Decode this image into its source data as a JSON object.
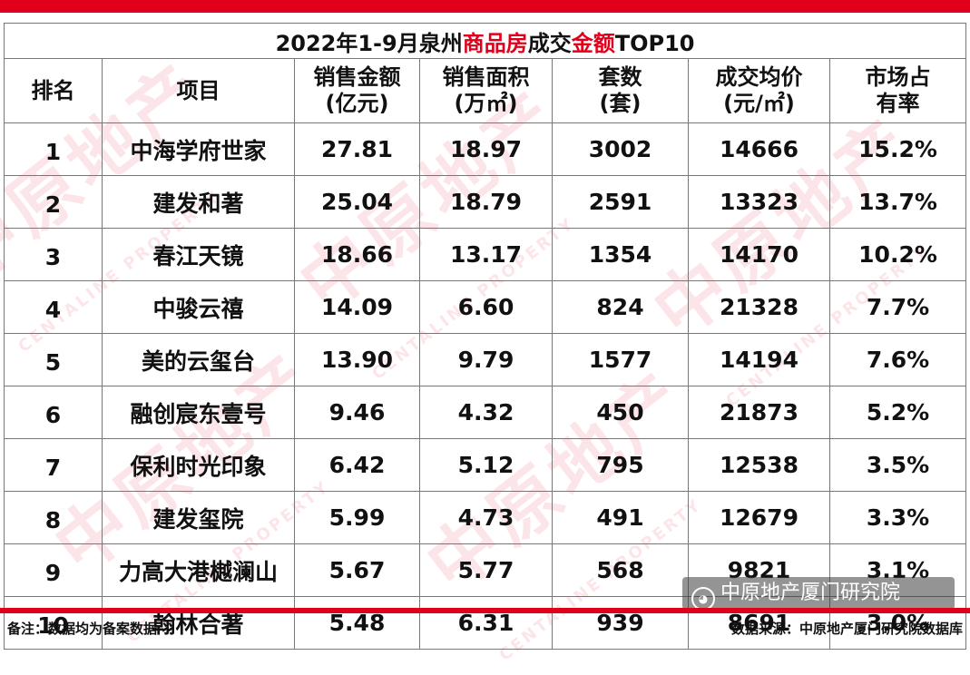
{
  "title": {
    "part1": "2022年1-9月泉州",
    "part2": "商品房",
    "part3": "成交",
    "part4": "金额",
    "part5": "TOP10"
  },
  "headers": [
    {
      "line1": "排名",
      "line2": ""
    },
    {
      "line1": "项目",
      "line2": ""
    },
    {
      "line1": "销售金额",
      "line2": "(亿元)"
    },
    {
      "line1": "销售面积",
      "line2": "(万㎡)"
    },
    {
      "line1": "套数",
      "line2": "(套)"
    },
    {
      "line1": "成交均价",
      "line2": "(元/㎡)"
    },
    {
      "line1": "市场占",
      "line2": "有率"
    }
  ],
  "rows": [
    {
      "rank": "1",
      "project": "中海学府世家",
      "amount": "27.81",
      "area": "18.97",
      "units": "3002",
      "price": "14666",
      "share": "15.2%"
    },
    {
      "rank": "2",
      "project": "建发和著",
      "amount": "25.04",
      "area": "18.79",
      "units": "2591",
      "price": "13323",
      "share": "13.7%"
    },
    {
      "rank": "3",
      "project": "春江天镜",
      "amount": "18.66",
      "area": "13.17",
      "units": "1354",
      "price": "14170",
      "share": "10.2%"
    },
    {
      "rank": "4",
      "project": "中骏云禧",
      "amount": "14.09",
      "area": "6.60",
      "units": "824",
      "price": "21328",
      "share": "7.7%"
    },
    {
      "rank": "5",
      "project": "美的云玺台",
      "amount": "13.90",
      "area": "9.79",
      "units": "1577",
      "price": "14194",
      "share": "7.6%"
    },
    {
      "rank": "6",
      "project": "融创宸东壹号",
      "amount": "9.46",
      "area": "4.32",
      "units": "450",
      "price": "21873",
      "share": "5.2%"
    },
    {
      "rank": "7",
      "project": "保利时光印象",
      "amount": "6.42",
      "area": "5.12",
      "units": "795",
      "price": "12538",
      "share": "3.5%"
    },
    {
      "rank": "8",
      "project": "建发玺院",
      "amount": "5.99",
      "area": "4.73",
      "units": "491",
      "price": "12679",
      "share": "3.3%"
    },
    {
      "rank": "9",
      "project": "力高大港樾澜山",
      "amount": "5.67",
      "area": "5.77",
      "units": "568",
      "price": "9821",
      "share": "3.1%"
    },
    {
      "rank": "10",
      "project": "翰林合著",
      "amount": "5.48",
      "area": "6.31",
      "units": "939",
      "price": "8691",
      "share": "3.0%"
    }
  ],
  "footer": {
    "note": "备注：数据均为备案数据",
    "source": "数据来源：中原地产厦门研究院数据库"
  },
  "wechat_badge": {
    "icon": "wechat-icon",
    "label": "中原地产厦门研究院"
  },
  "watermark": {
    "text": "中原地产",
    "sub": "CENTALINE PROPERTY"
  },
  "colors": {
    "accent": "#e0001b",
    "border": "#777777",
    "text": "#111111"
  }
}
